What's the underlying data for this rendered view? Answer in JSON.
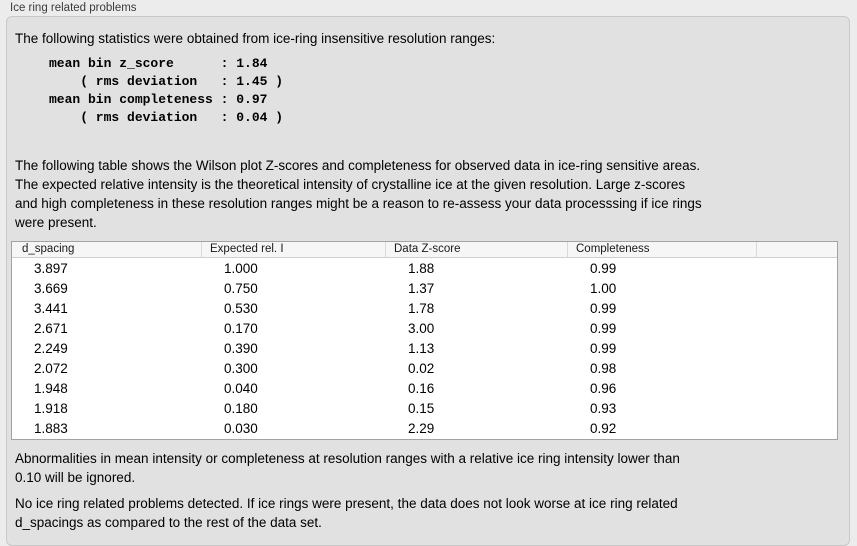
{
  "group_box": {
    "label": "Ice ring related problems"
  },
  "panel": {
    "intro": "The following statistics were obtained from ice-ring insensitive resolution ranges:",
    "stats_block": "mean bin z_score      : 1.84\n    ( rms deviation   : 1.45 )\nmean bin completeness : 0.97\n    ( rms deviation   : 0.04 )",
    "stats": {
      "mean_bin_z_score": "1.84",
      "z_score_rms_deviation": "1.45",
      "mean_bin_completeness": "0.97",
      "completeness_rms_deviation": "0.04"
    },
    "description": "The following table shows the Wilson plot Z-scores and completeness for observed data in ice-ring sensitive areas.\nThe expected relative intensity is the theoretical intensity of crystalline ice at the given resolution. Large z-scores\nand high completeness in these resolution ranges might be a reason to re-assess your data processsing if ice rings\nwere present.",
    "table": {
      "columns": [
        "d_spacing",
        "Expected rel. I",
        "Data Z-score",
        "Completeness"
      ],
      "rows": [
        [
          "3.897",
          "1.000",
          "1.88",
          "0.99"
        ],
        [
          "3.669",
          "0.750",
          "1.37",
          "1.00"
        ],
        [
          "3.441",
          "0.530",
          "1.78",
          "0.99"
        ],
        [
          "2.671",
          "0.170",
          "3.00",
          "0.99"
        ],
        [
          "2.249",
          "0.390",
          "1.13",
          "0.99"
        ],
        [
          "2.072",
          "0.300",
          "0.02",
          "0.98"
        ],
        [
          "1.948",
          "0.040",
          "0.16",
          "0.96"
        ],
        [
          "1.918",
          "0.180",
          "0.15",
          "0.93"
        ],
        [
          "1.883",
          "0.030",
          "2.29",
          "0.92"
        ]
      ]
    },
    "note": "Abnormalities in mean intensity or completeness at resolution ranges with a relative ice ring intensity lower than\n0.10 will be ignored.",
    "conclusion": "No ice ring related problems detected. If ice rings were present, the data does not look worse at ice ring related\nd_spacings as compared to the rest of the data set."
  },
  "colors": {
    "outer_background": "#ececec",
    "panel_background": "#e1e1e1",
    "panel_border": "#c9c9c9",
    "table_background": "#ffffff",
    "table_border": "#a2a2a2",
    "table_header_background": "#f6f6f6",
    "text": "#000000"
  }
}
